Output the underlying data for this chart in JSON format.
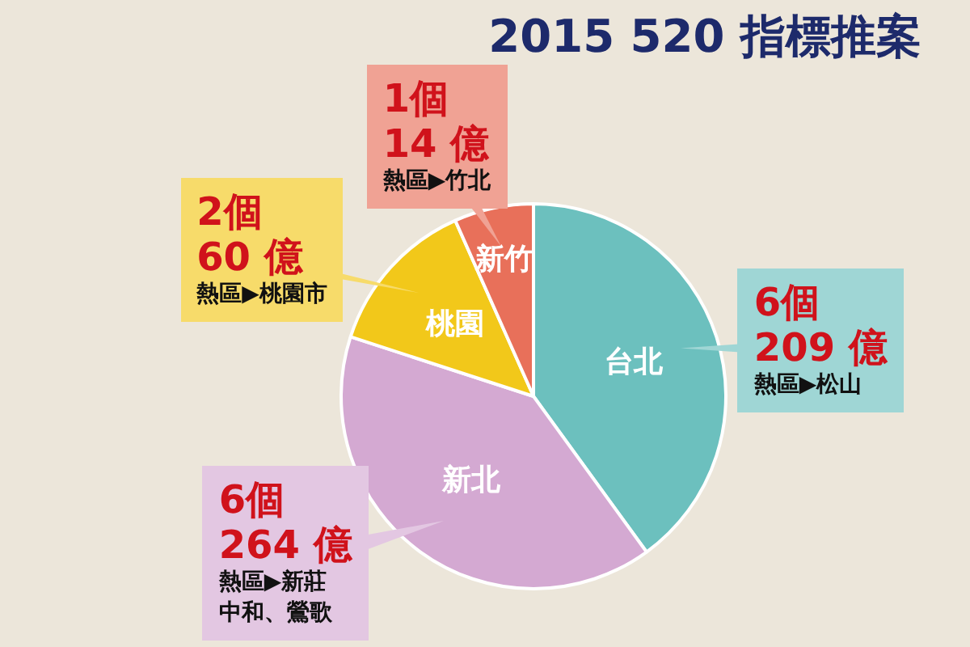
{
  "chart_data": {
    "type": "pie",
    "title": "2015 520 指標推案",
    "categories": [
      "台北",
      "新北",
      "桃園",
      "新竹"
    ],
    "values": [
      6,
      6,
      2,
      1
    ],
    "colors": [
      "#6cc0be",
      "#d4a9d2",
      "#f2c81a",
      "#e8705a"
    ],
    "value_labels": [
      "6個",
      "6個",
      "2個",
      "1個"
    ],
    "annotations": [
      {
        "text": "209 億",
        "x": "台北"
      },
      {
        "text": "熱區▶松山",
        "x": "台北"
      },
      {
        "text": "264 億",
        "x": "新北"
      },
      {
        "text": "熱區▶新莊",
        "x": "新北"
      },
      {
        "text": "中和、鶯歌",
        "x": "新北"
      },
      {
        "text": "60 億",
        "x": "桃園"
      },
      {
        "text": "熱區▶桃園市",
        "x": "桃園"
      },
      {
        "text": "14 億",
        "x": "新竹"
      },
      {
        "text": "熱區▶竹北",
        "x": "新竹"
      }
    ]
  }
}
